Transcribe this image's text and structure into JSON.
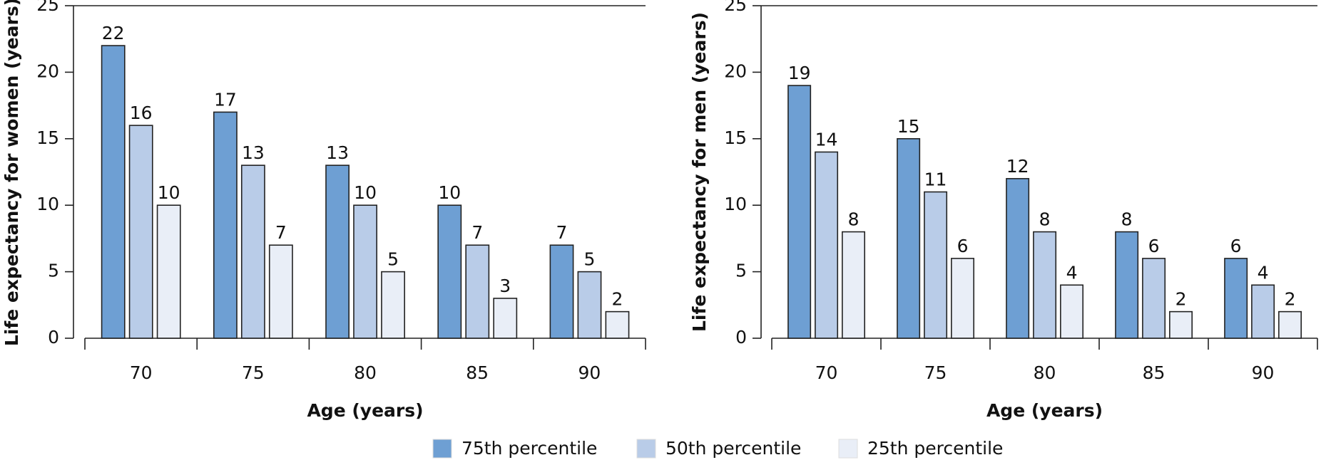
{
  "chart_data": [
    {
      "type": "bar",
      "y_label": "Life expectancy for women (years)",
      "x_label": "Age (years)",
      "categories": [
        "70",
        "75",
        "80",
        "85",
        "90"
      ],
      "series": [
        {
          "name": "75th percentile",
          "color": "#6e9fd3",
          "values": [
            22,
            17,
            13,
            10,
            7
          ]
        },
        {
          "name": "50th percentile",
          "color": "#b9cce8",
          "values": [
            16,
            13,
            10,
            7,
            5
          ]
        },
        {
          "name": "25th percentile",
          "color": "#e9eef7",
          "values": [
            10,
            7,
            5,
            3,
            2
          ]
        }
      ],
      "ylim": [
        0,
        25
      ],
      "yticks": [
        0,
        5,
        10,
        15,
        20,
        25
      ],
      "legend": "bottom"
    },
    {
      "type": "bar",
      "y_label": "Life expectancy for men (years)",
      "x_label": "Age (years)",
      "categories": [
        "70",
        "75",
        "80",
        "85",
        "90"
      ],
      "series": [
        {
          "color": "#6e9fd3",
          "values": [
            19,
            15,
            12,
            8,
            6
          ]
        },
        {
          "color": "#b9cce8",
          "values": [
            14,
            11,
            8,
            6,
            4
          ]
        },
        {
          "color": "#e9eef7",
          "values": [
            8,
            6,
            4,
            2,
            2
          ]
        }
      ],
      "ylim": [
        0,
        25
      ],
      "yticks": [
        0,
        5,
        10,
        15,
        20,
        25
      ]
    }
  ]
}
